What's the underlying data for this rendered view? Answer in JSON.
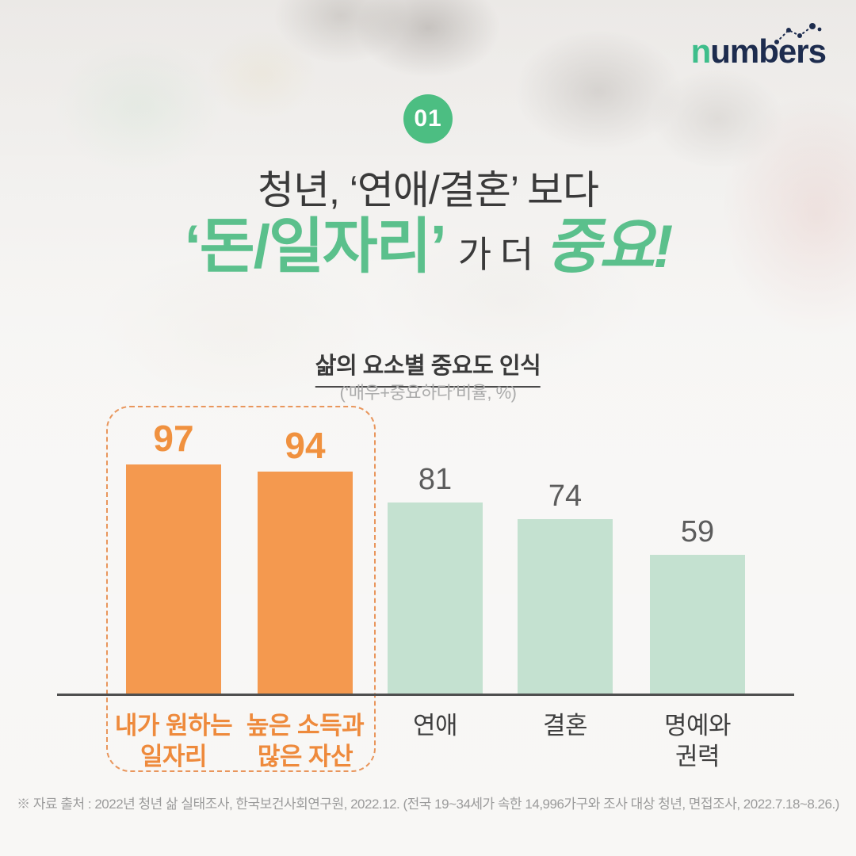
{
  "logo": {
    "prefix": "n",
    "rest": "umbers",
    "prefix_color": "#3ebe8b",
    "rest_color": "#1d2c4e"
  },
  "badge": {
    "number": "01",
    "color": "#4cbe82"
  },
  "title": {
    "line1": "청년, ‘연애/결혼’ 보다",
    "line2_highlight1": "‘돈/일자리’",
    "line2_middle": "가 더",
    "line2_highlight2": "중요!",
    "highlight_color": "#5bc08c",
    "dark_color": "#3a3a3a"
  },
  "subtitle": "삶의 요소별 중요도 인식",
  "subtitle_caption": "(‘매우+중요하다’비율, %)",
  "footer": "※ 자료 출처 :  2022년 청년 삶 실태조사, 한국보건사회연구원, 2022.12. (전국 19~34세가 속한 14,996가구와 조사 대상 청년, 면접조사, 2022.7.18~8.26.)",
  "footer_color": "#9b9b9b",
  "chart_data": {
    "type": "bar",
    "title": "삶의 요소별 중요도 인식",
    "unit": "(‘매우+중요하다’비율, %)",
    "categories": [
      "내가 원하는\n일자리",
      "높은 소득과\n많은 자산",
      "연애",
      "결혼",
      "명예와\n권력"
    ],
    "values": [
      97,
      94,
      81,
      74,
      59
    ],
    "highlighted": [
      true,
      true,
      false,
      false,
      false
    ],
    "ylim": [
      0,
      100
    ],
    "grid": false,
    "legend": "none",
    "bar_color_highlight": "#f4994f",
    "bar_color_default": "#c4e1d0",
    "value_color_highlight": "#f0913f",
    "value_color_default": "#5c5c5c",
    "label_color_highlight": "#ee8a3c",
    "label_color_default": "#3f3f3f",
    "axis_color": "#4f4f4f",
    "highlight_box_color": "#e9965c"
  }
}
